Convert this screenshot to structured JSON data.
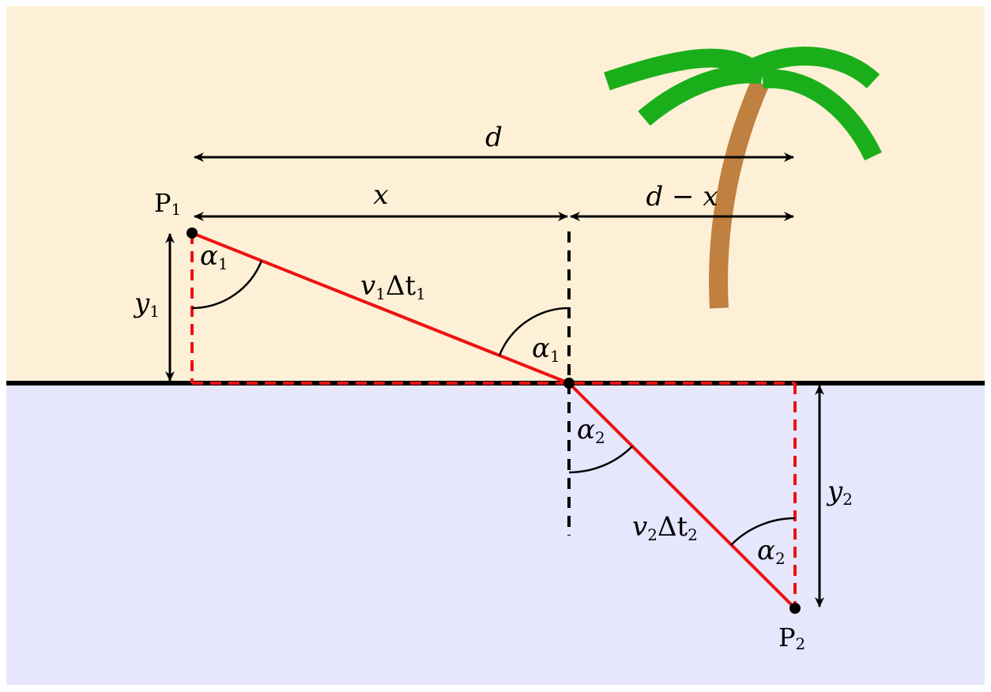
{
  "labels": {
    "d": "d",
    "x": "x",
    "d_minus_x": "d − x",
    "p1": "P",
    "p1_sub": "1",
    "p2": "P",
    "p2_sub": "2",
    "y1": "y",
    "y1_sub": "1",
    "y2": "y",
    "y2_sub": "2",
    "alpha1_left": "α",
    "alpha1_left_sub": "1",
    "alpha1_center": "α",
    "alpha1_center_sub": "1",
    "alpha2_center": "α",
    "alpha2_center_sub": "2",
    "alpha2_right": "α",
    "alpha2_right_sub": "2",
    "v1_path": "v",
    "v1_sub": "1",
    "v1_rest": "Δt",
    "v1_rest_sub": "1",
    "v2_path": "v",
    "v2_sub": "2",
    "v2_rest": "Δt",
    "v2_rest_sub": "2"
  },
  "colors": {
    "land": "#fdf0d6",
    "water": "#e6e6fd",
    "path": "#ee1111",
    "palm_leaves": "#1aaf1a",
    "palm_trunk": "#c08040"
  },
  "icons": {
    "tree": "palm-tree-icon"
  }
}
